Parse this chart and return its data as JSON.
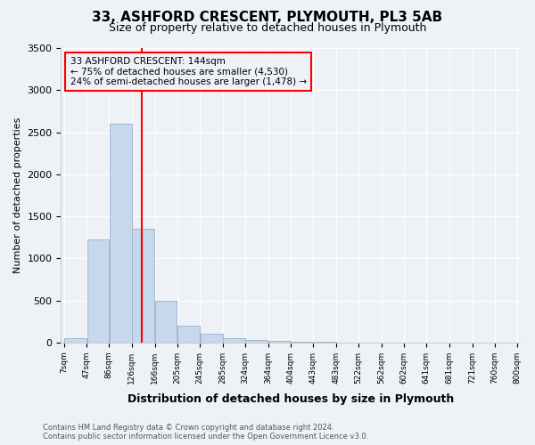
{
  "title": "33, ASHFORD CRESCENT, PLYMOUTH, PL3 5AB",
  "subtitle": "Size of property relative to detached houses in Plymouth",
  "xlabel": "Distribution of detached houses by size in Plymouth",
  "ylabel": "Number of detached properties",
  "bar_color": "#c5d8ec",
  "bar_edge_color": "#a0b8d0",
  "vline_x": 144,
  "vline_color": "red",
  "annotation_line1": "33 ASHFORD CRESCENT: 144sqm",
  "annotation_line2": "← 75% of detached houses are smaller (4,530)",
  "annotation_line3": "24% of semi-detached houses are larger (1,478) →",
  "annotation_box_color": "red",
  "footer_line1": "Contains HM Land Registry data © Crown copyright and database right 2024.",
  "footer_line2": "Contains public sector information licensed under the Open Government Licence v3.0.",
  "bin_edges": [
    7,
    47,
    86,
    126,
    166,
    205,
    245,
    285,
    324,
    364,
    404,
    443,
    483,
    522,
    562,
    602,
    641,
    681,
    721,
    760,
    800
  ],
  "bin_labels": [
    "7sqm",
    "47sqm",
    "86sqm",
    "126sqm",
    "166sqm",
    "205sqm",
    "245sqm",
    "285sqm",
    "324sqm",
    "364sqm",
    "404sqm",
    "443sqm",
    "483sqm",
    "522sqm",
    "562sqm",
    "602sqm",
    "641sqm",
    "681sqm",
    "721sqm",
    "760sqm",
    "800sqm"
  ],
  "bar_heights": [
    50,
    1230,
    2600,
    1350,
    500,
    200,
    100,
    50,
    30,
    15,
    10,
    5,
    2,
    0,
    0,
    0,
    0,
    0,
    0,
    0
  ],
  "ylim": [
    0,
    3500
  ],
  "yticks": [
    0,
    500,
    1000,
    1500,
    2000,
    2500,
    3000,
    3500
  ],
  "plot_background": "#eef2f7"
}
